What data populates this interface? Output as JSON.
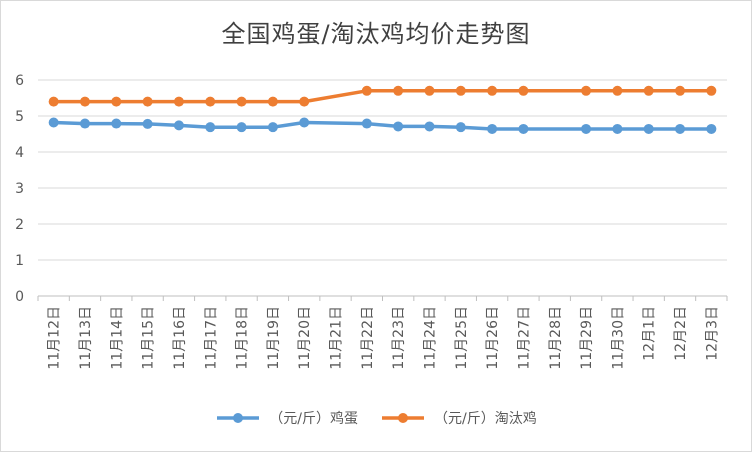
{
  "chart_data": {
    "type": "line",
    "title": "全国鸡蛋/淘汰鸡均价走势图",
    "categories": [
      "11月12日",
      "11月13日",
      "11月14日",
      "11月15日",
      "11月16日",
      "11月17日",
      "11月18日",
      "11月19日",
      "11月20日",
      "11月21日",
      "11月22日",
      "11月23日",
      "11月24日",
      "11月25日",
      "11月26日",
      "11月27日",
      "11月28日",
      "11月29日",
      "11月30日",
      "12月1日",
      "12月2日",
      "12月3日"
    ],
    "series": [
      {
        "name": "（元/斤）鸡蛋",
        "color": "#5b9bd5",
        "values": [
          4.82,
          4.79,
          4.79,
          4.78,
          4.74,
          4.69,
          4.69,
          4.69,
          4.82,
          null,
          4.79,
          4.71,
          4.71,
          4.69,
          4.64,
          4.64,
          null,
          4.64,
          4.64,
          4.64,
          4.64,
          4.64
        ]
      },
      {
        "name": "（元/斤）淘汰鸡",
        "color": "#ed7d31",
        "values": [
          5.4,
          5.4,
          5.4,
          5.4,
          5.4,
          5.4,
          5.4,
          5.4,
          5.4,
          null,
          5.7,
          5.7,
          5.7,
          5.7,
          5.7,
          5.7,
          null,
          5.7,
          5.7,
          5.7,
          5.7,
          5.7
        ]
      }
    ],
    "ylim": [
      0,
      6
    ],
    "yticks": [
      0,
      1,
      2,
      3,
      4,
      5,
      6
    ],
    "grid": true,
    "legend": "bottom-center",
    "xlabel": "",
    "ylabel": ""
  }
}
